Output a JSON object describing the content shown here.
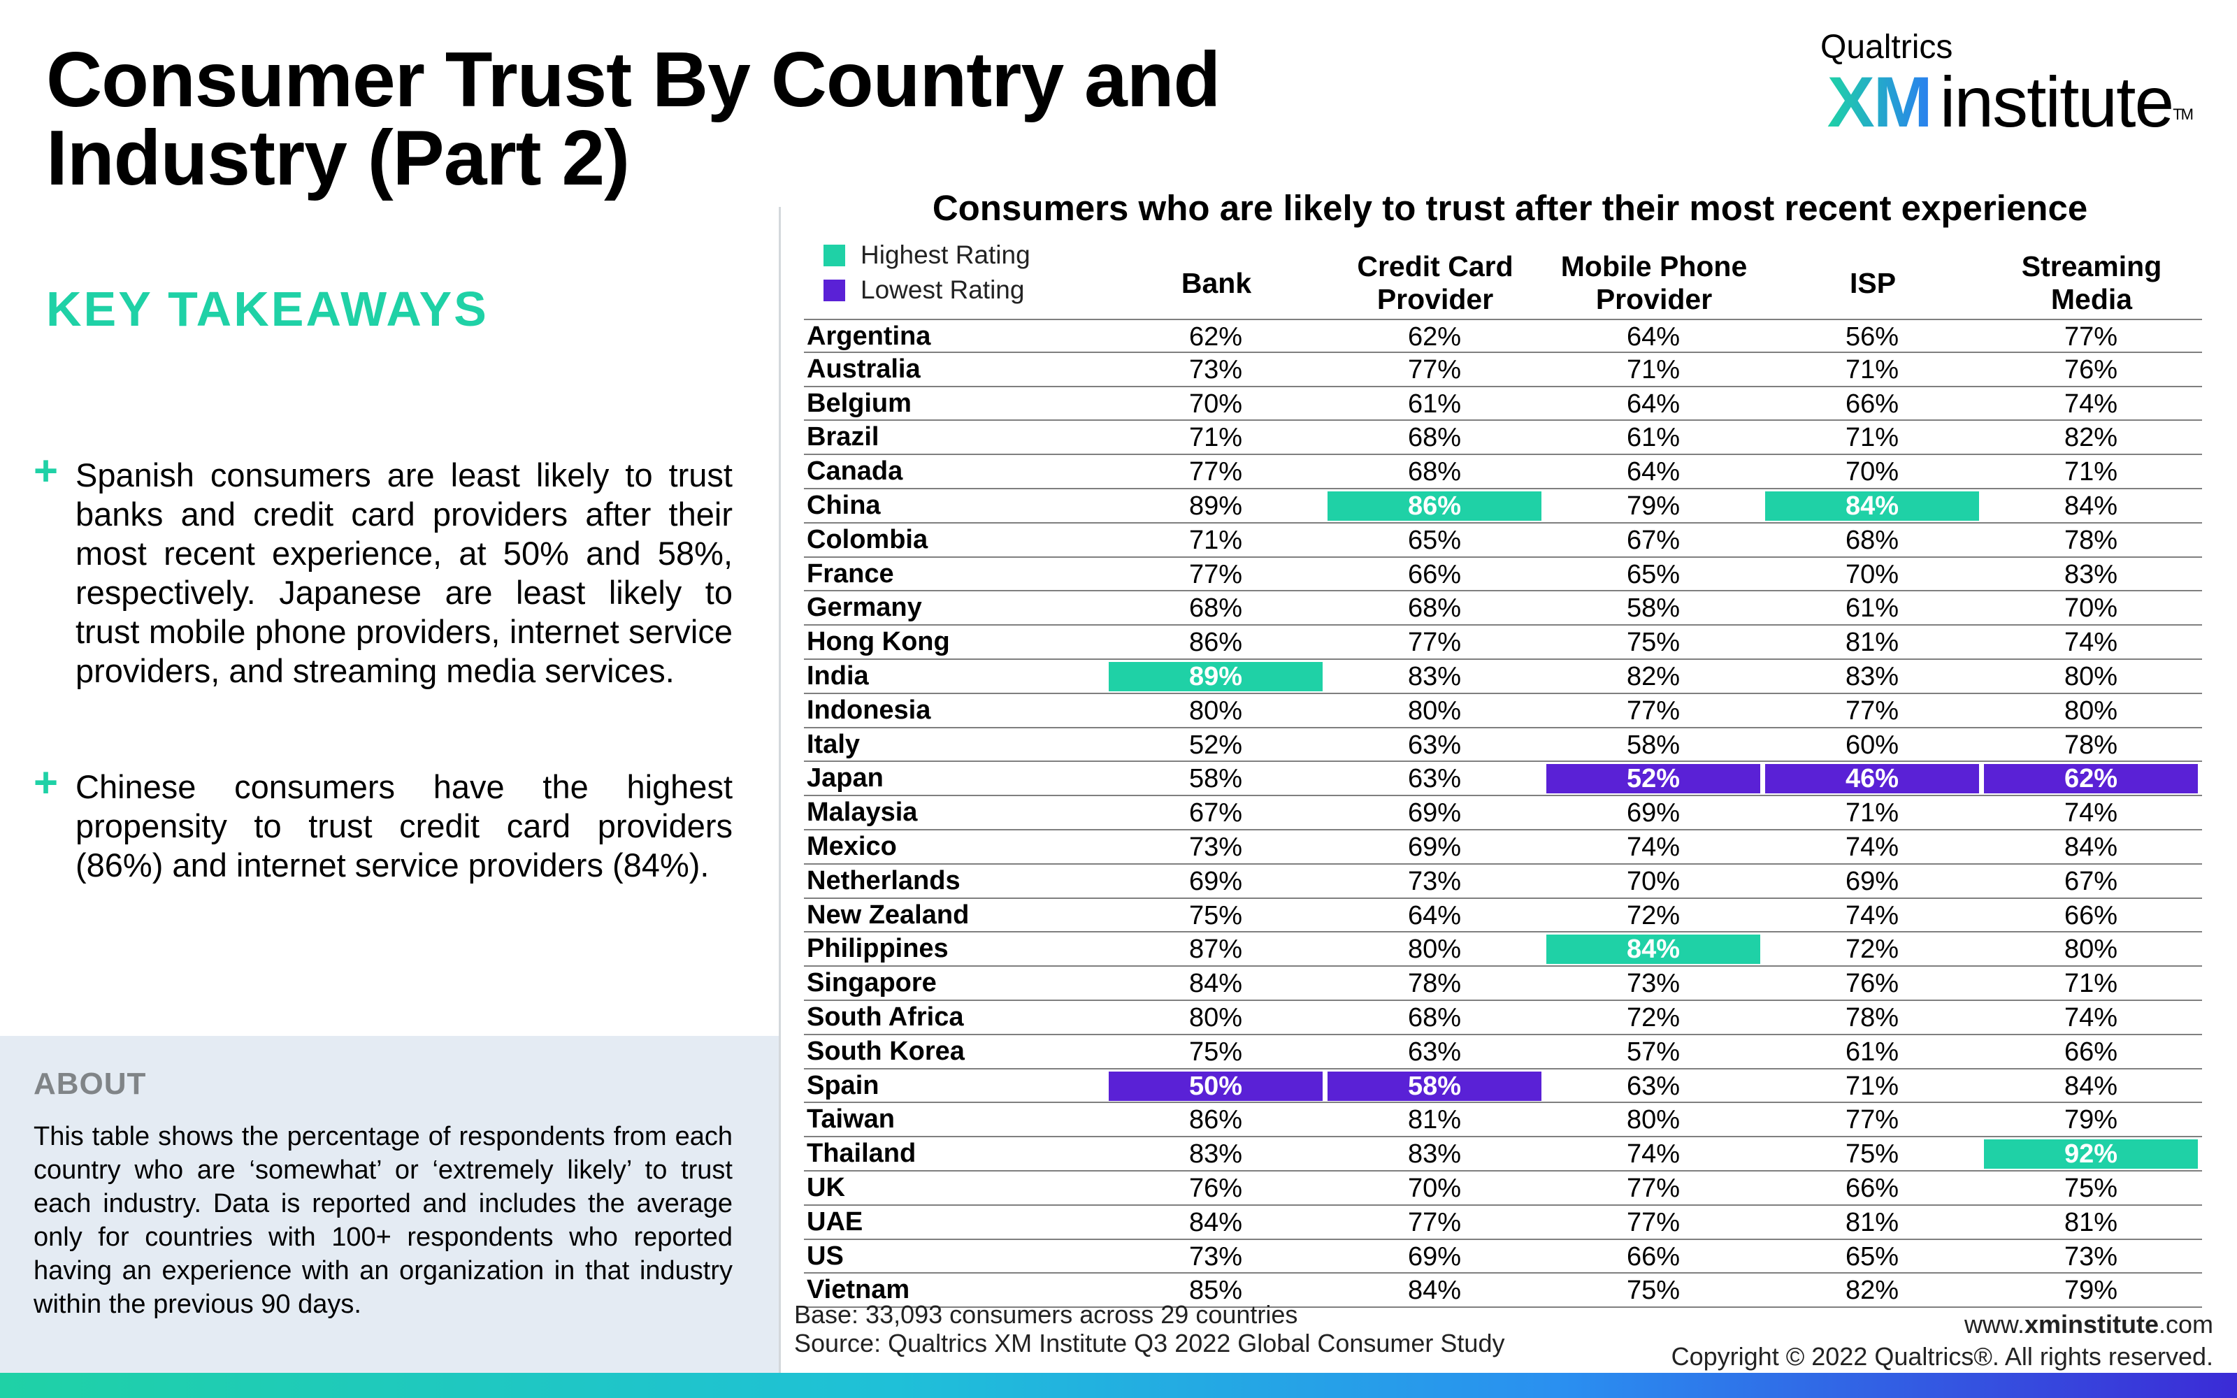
{
  "title": "Consumer Trust By Country and Industry (Part 2)",
  "logo": {
    "top": "Qualtrics",
    "xm": "XM",
    "institute": "institute",
    "tm": "TM"
  },
  "key_takeaways": {
    "heading": "KEY TAKEAWAYS",
    "bullets": [
      "Spanish consumers are least likely to trust banks and credit card providers after their most recent experience, at 50% and 58%, respectively. Japanese are least likely to trust mobile phone providers, internet service providers, and streaming media services.",
      "Chinese consumers have the highest propensity to trust credit card providers (86%) and internet service providers (84%)."
    ]
  },
  "about": {
    "heading": "ABOUT",
    "text": "This table shows the percentage of respondents from each country who are ‘somewhat’ or ‘extremely likely’ to trust each industry. Data is reported and includes the average only for countries with 100+ respondents who reported having an experience with an organization in that industry within the previous 90 days."
  },
  "colors": {
    "highest": "#1fd1a6",
    "lowest": "#5a21d6"
  },
  "chart_data": {
    "type": "table",
    "title": "Consumers who are likely to trust after their most recent experience",
    "legend": {
      "highest": "Highest Rating",
      "lowest": "Lowest Rating"
    },
    "columns": [
      "Bank",
      "Credit Card Provider",
      "Mobile Phone Provider",
      "ISP",
      "Streaming Media"
    ],
    "rows": [
      {
        "country": "Argentina",
        "values": [
          "62%",
          "62%",
          "64%",
          "56%",
          "77%"
        ]
      },
      {
        "country": "Australia",
        "values": [
          "73%",
          "77%",
          "71%",
          "71%",
          "76%"
        ]
      },
      {
        "country": "Belgium",
        "values": [
          "70%",
          "61%",
          "64%",
          "66%",
          "74%"
        ]
      },
      {
        "country": "Brazil",
        "values": [
          "71%",
          "68%",
          "61%",
          "71%",
          "82%"
        ]
      },
      {
        "country": "Canada",
        "values": [
          "77%",
          "68%",
          "64%",
          "70%",
          "71%"
        ]
      },
      {
        "country": "China",
        "values": [
          "89%",
          "86%",
          "79%",
          "84%",
          "84%"
        ],
        "highlight": [
          "",
          "hi",
          "",
          "hi",
          ""
        ]
      },
      {
        "country": "Colombia",
        "values": [
          "71%",
          "65%",
          "67%",
          "68%",
          "78%"
        ]
      },
      {
        "country": "France",
        "values": [
          "77%",
          "66%",
          "65%",
          "70%",
          "83%"
        ]
      },
      {
        "country": "Germany",
        "values": [
          "68%",
          "68%",
          "58%",
          "61%",
          "70%"
        ]
      },
      {
        "country": "Hong Kong",
        "values": [
          "86%",
          "77%",
          "75%",
          "81%",
          "74%"
        ]
      },
      {
        "country": "India",
        "values": [
          "89%",
          "83%",
          "82%",
          "83%",
          "80%"
        ],
        "highlight": [
          "hi",
          "",
          "",
          "",
          ""
        ]
      },
      {
        "country": "Indonesia",
        "values": [
          "80%",
          "80%",
          "77%",
          "77%",
          "80%"
        ]
      },
      {
        "country": "Italy",
        "values": [
          "52%",
          "63%",
          "58%",
          "60%",
          "78%"
        ]
      },
      {
        "country": "Japan",
        "values": [
          "58%",
          "63%",
          "52%",
          "46%",
          "62%"
        ],
        "highlight": [
          "",
          "",
          "lo",
          "lo",
          "lo"
        ]
      },
      {
        "country": "Malaysia",
        "values": [
          "67%",
          "69%",
          "69%",
          "71%",
          "74%"
        ]
      },
      {
        "country": "Mexico",
        "values": [
          "73%",
          "69%",
          "74%",
          "74%",
          "84%"
        ]
      },
      {
        "country": "Netherlands",
        "values": [
          "69%",
          "73%",
          "70%",
          "69%",
          "67%"
        ]
      },
      {
        "country": "New Zealand",
        "values": [
          "75%",
          "64%",
          "72%",
          "74%",
          "66%"
        ]
      },
      {
        "country": "Philippines",
        "values": [
          "87%",
          "80%",
          "84%",
          "72%",
          "80%"
        ],
        "highlight": [
          "",
          "",
          "hi",
          "",
          ""
        ]
      },
      {
        "country": "Singapore",
        "values": [
          "84%",
          "78%",
          "73%",
          "76%",
          "71%"
        ]
      },
      {
        "country": "South Africa",
        "values": [
          "80%",
          "68%",
          "72%",
          "78%",
          "74%"
        ]
      },
      {
        "country": "South Korea",
        "values": [
          "75%",
          "63%",
          "57%",
          "61%",
          "66%"
        ]
      },
      {
        "country": "Spain",
        "values": [
          "50%",
          "58%",
          "63%",
          "71%",
          "84%"
        ],
        "highlight": [
          "lo",
          "lo",
          "",
          "",
          ""
        ]
      },
      {
        "country": "Taiwan",
        "values": [
          "86%",
          "81%",
          "80%",
          "77%",
          "79%"
        ]
      },
      {
        "country": "Thailand",
        "values": [
          "83%",
          "83%",
          "74%",
          "75%",
          "92%"
        ],
        "highlight": [
          "",
          "",
          "",
          "",
          "hi"
        ]
      },
      {
        "country": "UK",
        "values": [
          "76%",
          "70%",
          "77%",
          "66%",
          "75%"
        ]
      },
      {
        "country": "UAE",
        "values": [
          "84%",
          "77%",
          "77%",
          "81%",
          "81%"
        ]
      },
      {
        "country": "US",
        "values": [
          "73%",
          "69%",
          "66%",
          "65%",
          "73%"
        ]
      },
      {
        "country": "Vietnam",
        "values": [
          "85%",
          "84%",
          "75%",
          "82%",
          "79%"
        ]
      }
    ]
  },
  "footer": {
    "base": "Base: 33,093 consumers across 29 countries",
    "source": "Source: Qualtrics XM Institute Q3 2022 Global Consumer Study",
    "url_prefix": "www.",
    "url_bold": "xminstitute",
    "url_suffix": ".com",
    "copyright": "Copyright © 2022 Qualtrics®. All rights reserved."
  }
}
